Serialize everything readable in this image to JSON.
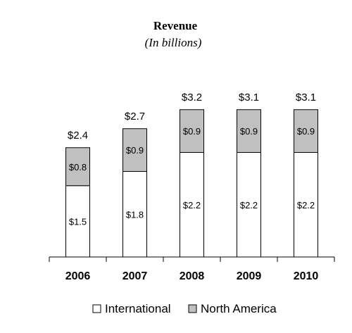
{
  "chart_data": {
    "type": "bar",
    "stacked": true,
    "title": "Revenue",
    "subtitle": "(In billions)",
    "categories": [
      "2006",
      "2007",
      "2008",
      "2009",
      "2010"
    ],
    "series": [
      {
        "name": "International",
        "values": [
          1.5,
          1.8,
          2.2,
          2.2,
          2.2
        ],
        "labels": [
          "$1.5",
          "$1.8",
          "$2.2",
          "$2.2",
          "$2.2"
        ],
        "color": "#ffffff"
      },
      {
        "name": "North America",
        "values": [
          0.8,
          0.9,
          0.9,
          0.9,
          0.9
        ],
        "labels": [
          "$0.8",
          "$0.9",
          "$0.9",
          "$0.9",
          "$0.9"
        ],
        "color": "#c0c0c0"
      }
    ],
    "totals": [
      2.4,
      2.7,
      3.2,
      3.1,
      3.1
    ],
    "total_labels": [
      "$2.4",
      "$2.7",
      "$3.2",
      "$3.1",
      "$3.1"
    ],
    "ylim": [
      0,
      3.5
    ],
    "grid": false,
    "legend_position": "bottom"
  }
}
